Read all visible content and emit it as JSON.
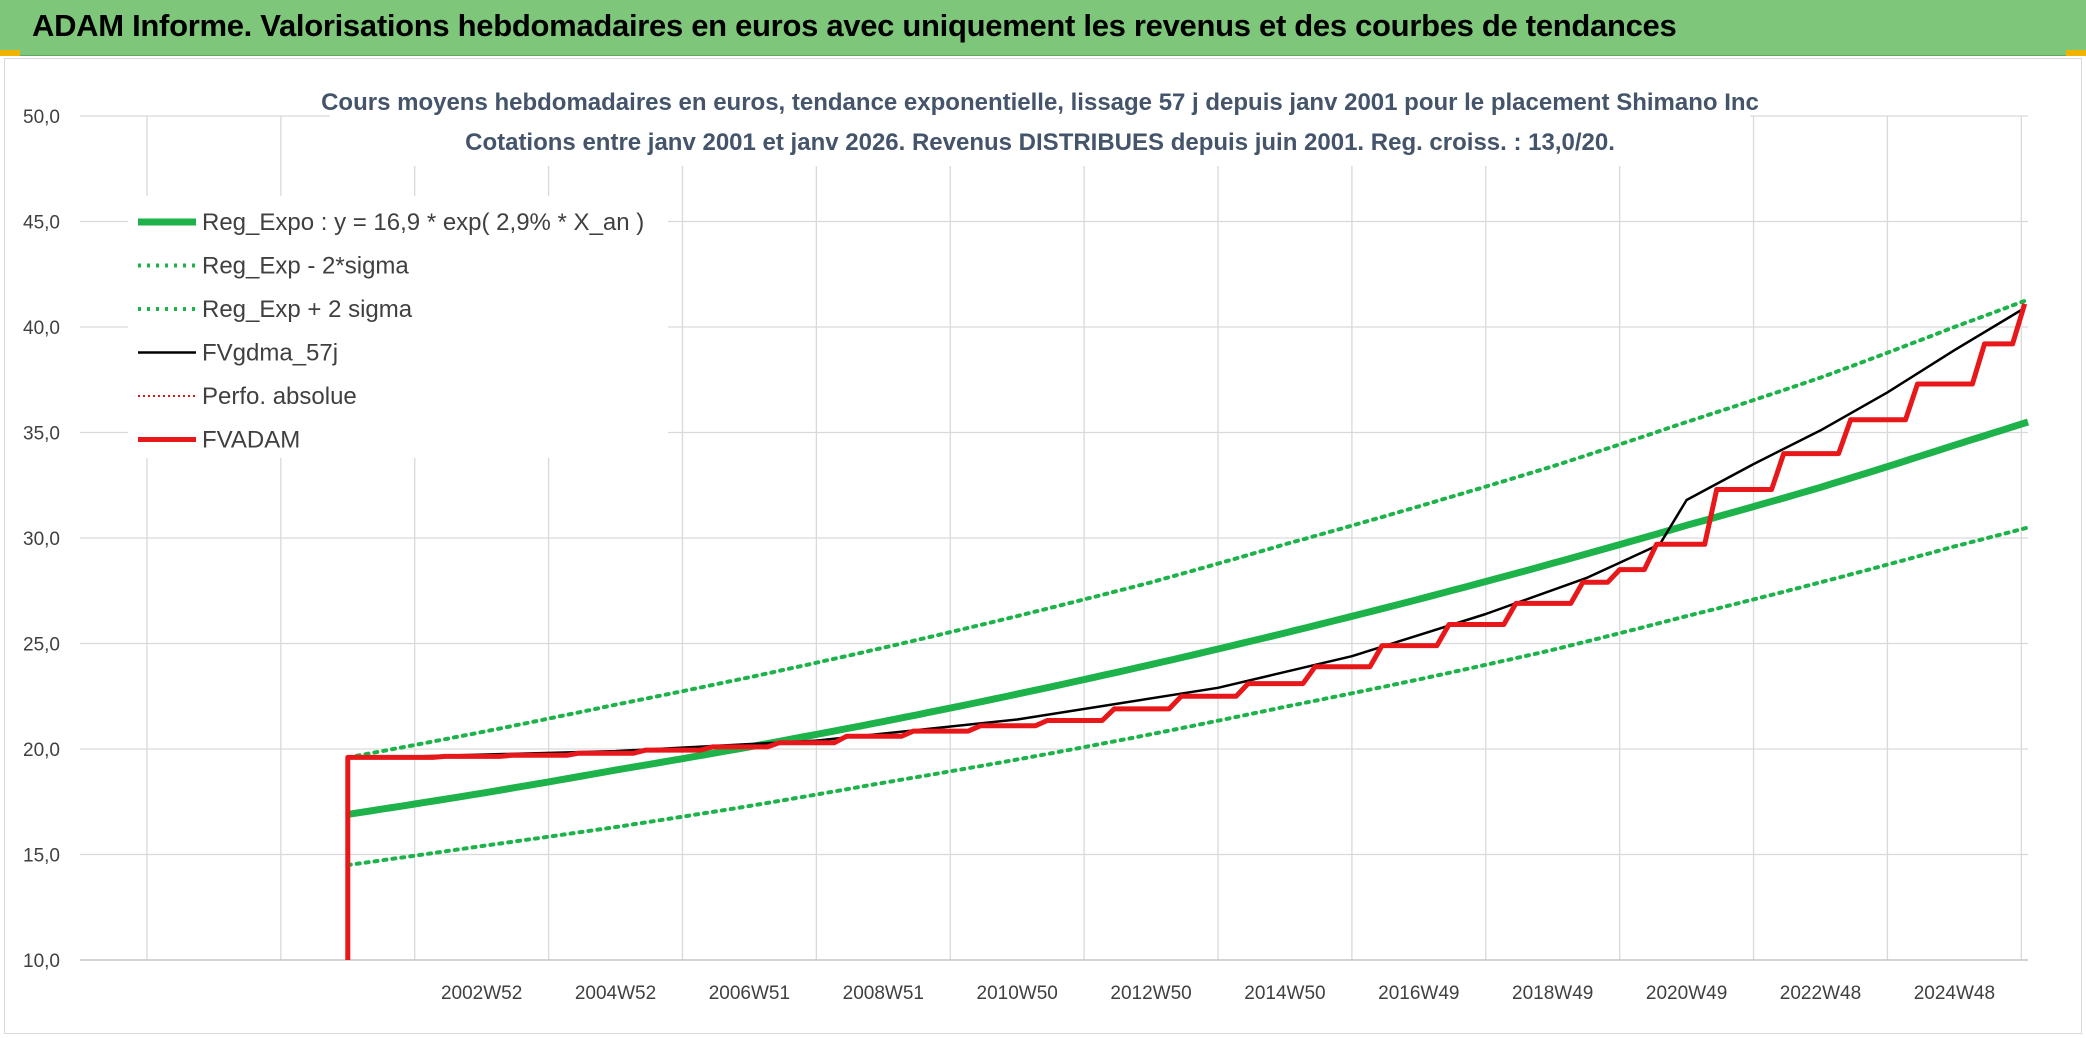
{
  "banner": {
    "title": "ADAM Informe. Valorisations hebdomadaires en euros avec uniquement les revenus et des courbes de tendances"
  },
  "colors": {
    "banner_bg": "#7ec77a",
    "reg_expo": "#1db34a",
    "reg_bounds": "#1db34a",
    "fvgdma": "#000000",
    "perfo": "#d7191c",
    "fvadam": "#e8171a",
    "grid": "#d9d9d9"
  },
  "chart_data": {
    "type": "line",
    "title": [
      "Cours moyens hebdomadaires en euros, tendance exponentielle, lissage 57 j depuis janv 2001 pour le placement Shimano Inc",
      "Cotations entre janv 2001 et janv 2026. Revenus DISTRIBUES depuis juin 2001. Reg. croiss. : 13,0/20."
    ],
    "xlabel": "",
    "ylabel": "",
    "ylim": [
      10,
      50
    ],
    "xlim": [
      1997,
      2026.1
    ],
    "y_ticks": [
      "10,0",
      "15,0",
      "20,0",
      "25,0",
      "30,0",
      "35,0",
      "40,0",
      "45,0",
      "50,0"
    ],
    "x_tick_labels": [
      "2002W52",
      "2004W52",
      "2006W51",
      "2008W51",
      "2010W50",
      "2012W50",
      "2014W50",
      "2016W49",
      "2018W49",
      "2020W49",
      "2022W48",
      "2024W48"
    ],
    "grid": true,
    "legend_position": "top-left",
    "series": [
      {
        "name": "Reg_Expo : y = 16,9 * exp( 2,9% *  X_an )",
        "style": "thick-solid",
        "color": "#1db34a",
        "x": [
          2001,
          2003,
          2005,
          2007,
          2009,
          2011,
          2013,
          2015,
          2017,
          2019,
          2021,
          2023,
          2025,
          2026.1
        ],
        "y": [
          16.9,
          17.9,
          19.0,
          20.1,
          21.3,
          22.6,
          24.0,
          25.5,
          27.1,
          28.8,
          30.6,
          32.4,
          34.4,
          35.5
        ]
      },
      {
        "name": "Reg_Exp - 2*sigma",
        "style": "dotted",
        "color": "#1db34a",
        "x": [
          2001,
          2003,
          2005,
          2007,
          2009,
          2011,
          2013,
          2015,
          2017,
          2019,
          2021,
          2023,
          2025,
          2026.1
        ],
        "y": [
          14.5,
          15.4,
          16.3,
          17.3,
          18.4,
          19.5,
          20.7,
          22.0,
          23.3,
          24.7,
          26.3,
          27.9,
          29.6,
          30.5
        ]
      },
      {
        "name": "Reg_Exp + 2 sigma",
        "style": "dotted",
        "color": "#1db34a",
        "x": [
          2001,
          2003,
          2005,
          2007,
          2009,
          2011,
          2013,
          2015,
          2017,
          2019,
          2021,
          2023,
          2025,
          2026.1
        ],
        "y": [
          19.6,
          20.8,
          22.1,
          23.4,
          24.8,
          26.3,
          27.9,
          29.7,
          31.5,
          33.4,
          35.5,
          37.6,
          40.0,
          41.3
        ]
      },
      {
        "name": "FVgdma_57j",
        "style": "solid",
        "color": "#000000",
        "x": [
          2001.45,
          2005,
          2008,
          2011,
          2014,
          2016,
          2018,
          2019.5,
          2020.6,
          2021,
          2022,
          2023,
          2024,
          2025,
          2026.05
        ],
        "y": [
          19.6,
          19.9,
          20.4,
          21.4,
          22.9,
          24.4,
          26.4,
          28.1,
          29.7,
          31.8,
          33.5,
          35.1,
          36.9,
          38.9,
          40.9
        ]
      },
      {
        "name": "Perfo. absolue",
        "style": "dotted-thin",
        "color": "#d7191c",
        "x": [],
        "y": []
      },
      {
        "name": "FVADAM",
        "style": "thick-solid-step",
        "color": "#e8171a",
        "x": [
          2001.0,
          2001.0,
          2001.45,
          2002.45,
          2003.45,
          2004.45,
          2005.45,
          2006.45,
          2007.45,
          2008.45,
          2009.45,
          2010.45,
          2011.45,
          2012.45,
          2013.45,
          2014.45,
          2015.45,
          2016.45,
          2017.45,
          2018.45,
          2019.45,
          2020.0,
          2020.55,
          2021.45,
          2022.45,
          2023.45,
          2024.45,
          2025.45,
          2026.05
        ],
        "y": [
          10.0,
          19.6,
          19.6,
          19.65,
          19.7,
          19.8,
          19.95,
          20.1,
          20.3,
          20.6,
          20.85,
          21.1,
          21.35,
          21.9,
          22.5,
          23.1,
          23.9,
          24.9,
          25.9,
          26.9,
          27.9,
          28.5,
          29.7,
          32.3,
          34.0,
          35.6,
          37.3,
          39.2,
          41.1
        ]
      }
    ]
  }
}
